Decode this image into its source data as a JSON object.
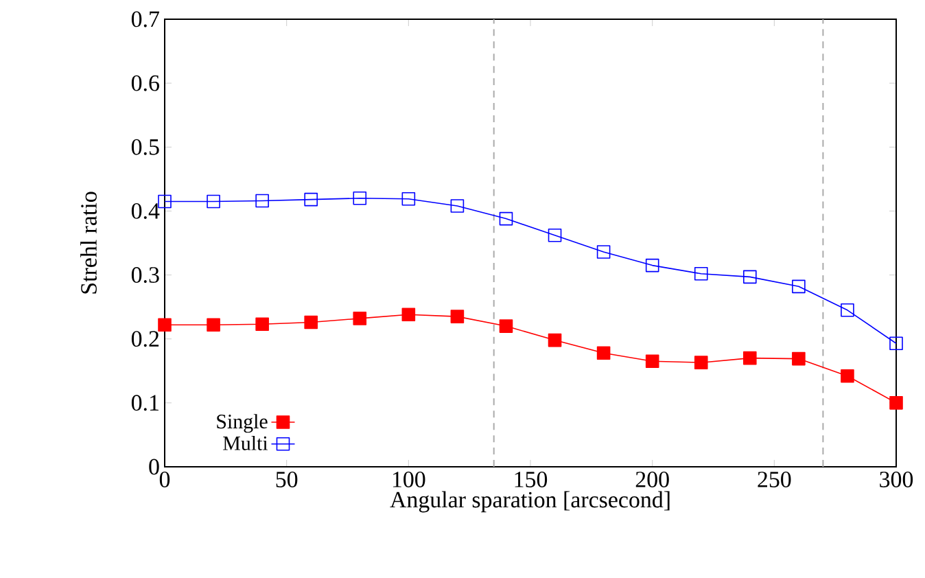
{
  "chart_data": {
    "type": "line",
    "xlabel": "Angular sparation [arcsecond]",
    "ylabel": "Strehl ratio",
    "x": [
      0,
      20,
      40,
      60,
      80,
      100,
      120,
      140,
      160,
      180,
      200,
      220,
      240,
      260,
      280,
      300
    ],
    "series": [
      {
        "name": "Single",
        "color": "#ff0000",
        "marker": "square",
        "values": [
          0.222,
          0.222,
          0.223,
          0.226,
          0.232,
          0.238,
          0.235,
          0.22,
          0.198,
          0.178,
          0.165,
          0.163,
          0.17,
          0.169,
          0.142,
          0.1
        ]
      },
      {
        "name": "Multi",
        "color": "#0000ff",
        "marker": "square open",
        "values": [
          0.415,
          0.415,
          0.416,
          0.418,
          0.42,
          0.419,
          0.408,
          0.388,
          0.362,
          0.336,
          0.315,
          0.302,
          0.297,
          0.282,
          0.245,
          0.193
        ]
      }
    ],
    "xlim": [
      0,
      300
    ],
    "xticks": [
      0,
      50,
      100,
      150,
      200,
      250,
      300
    ],
    "ylim": [
      0,
      0.7
    ],
    "yticks": [
      0,
      0.1,
      0.2,
      0.3,
      0.4,
      0.5,
      0.6,
      0.7
    ],
    "ref_lines": [
      {
        "axis": "x",
        "value": 135,
        "color": "#aaaaaa",
        "line_style": "dashed"
      },
      {
        "axis": "x",
        "value": 270,
        "color": "#aaaaaa",
        "line_style": "dashed"
      }
    ],
    "grid": false,
    "legend": "bottom left",
    "line_style": "solid"
  }
}
